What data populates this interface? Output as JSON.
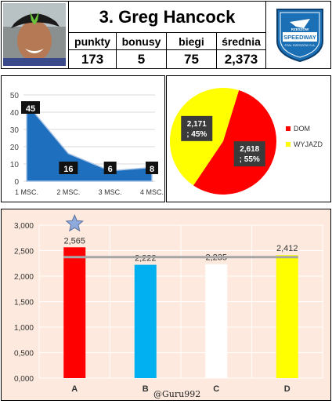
{
  "player": {
    "name": "3. Greg Hancock",
    "stats": [
      {
        "label": "punkty",
        "value": "173"
      },
      {
        "label": "bonusy",
        "value": "5"
      },
      {
        "label": "biegi",
        "value": "75"
      },
      {
        "label": "średnia",
        "value": "2,373"
      }
    ],
    "logo_text": {
      "top": "RZESZÓW",
      "main": "SPEEDWAY",
      "bottom": "STAL RZESZÓW S.A."
    }
  },
  "credit": "@Guru992",
  "chart_data": [
    {
      "type": "area",
      "categories": [
        "1 MSC.",
        "2 MSC.",
        "3 MSC.",
        "4 MSC."
      ],
      "values": [
        45,
        16,
        6,
        8
      ],
      "yticks": [
        "0",
        "10",
        "20",
        "30",
        "40",
        "50"
      ],
      "ylim": [
        0,
        50
      ],
      "grid": true,
      "color": "#1f6fbf"
    },
    {
      "type": "pie",
      "slices": [
        {
          "name": "DOM",
          "value": 2.618,
          "label": "2,618\n; 55%",
          "color": "#ff0000"
        },
        {
          "name": "WYJAZD",
          "value": 2.171,
          "label": "2,171\n; 45%",
          "color": "#ffff00"
        }
      ],
      "legend": "right"
    },
    {
      "type": "bar",
      "categories": [
        "A",
        "B",
        "C",
        "D"
      ],
      "values": [
        2.565,
        2.222,
        2.235,
        2.412
      ],
      "value_labels": [
        "2,565",
        "2,222",
        "2,235",
        "2,412"
      ],
      "colors": [
        "#ff0000",
        "#00b0f0",
        "#ffffff",
        "#ffff00"
      ],
      "yticks": [
        "0,000",
        "0,500",
        "1,000",
        "1,500",
        "2,000",
        "2,500",
        "3,000"
      ],
      "ylim": [
        0,
        3
      ],
      "reference_value": 2.373,
      "marker": "star above A",
      "grid": true
    }
  ]
}
